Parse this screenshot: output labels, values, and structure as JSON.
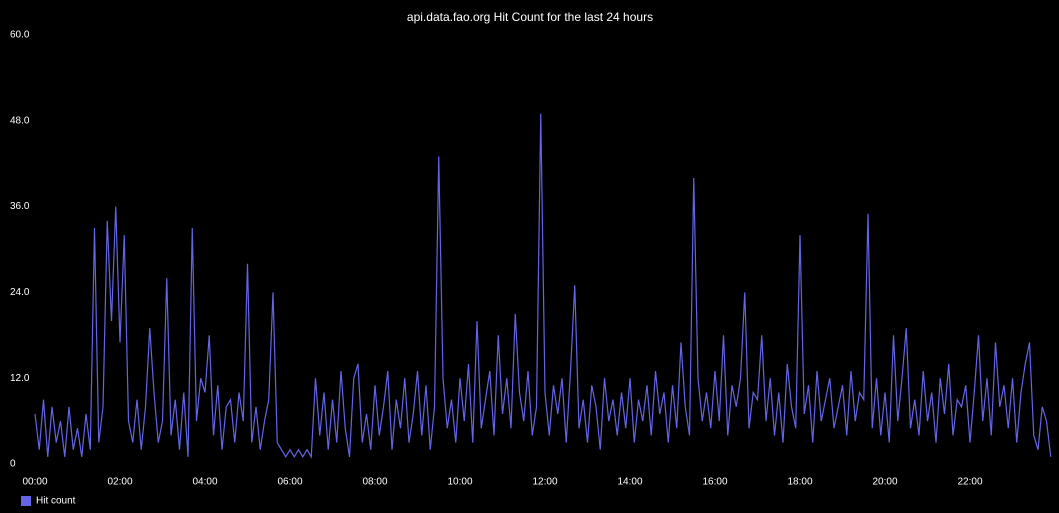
{
  "chart_data": {
    "type": "line",
    "title": "api.data.fao.org Hit Count for the last 24 hours",
    "x": [
      0,
      0.1,
      0.2,
      0.3,
      0.4,
      0.5,
      0.6,
      0.7,
      0.8,
      0.9,
      1,
      1.1,
      1.2,
      1.3,
      1.4,
      1.5,
      1.6,
      1.7,
      1.8,
      1.9,
      2,
      2.1,
      2.2,
      2.3,
      2.4,
      2.5,
      2.6,
      2.7,
      2.8,
      2.9,
      3,
      3.1,
      3.2,
      3.3,
      3.4,
      3.5,
      3.6,
      3.7,
      3.8,
      3.9,
      4,
      4.1,
      4.2,
      4.3,
      4.4,
      4.5,
      4.6,
      4.7,
      4.8,
      4.9,
      5,
      5.1,
      5.2,
      5.3,
      5.4,
      5.5,
      5.6,
      5.7,
      5.8,
      5.9,
      6,
      6.1,
      6.2,
      6.3,
      6.4,
      6.5,
      6.6,
      6.7,
      6.8,
      6.9,
      7,
      7.1,
      7.2,
      7.3,
      7.4,
      7.5,
      7.6,
      7.7,
      7.8,
      7.9,
      8,
      8.1,
      8.2,
      8.3,
      8.4,
      8.5,
      8.6,
      8.7,
      8.8,
      8.9,
      9,
      9.1,
      9.2,
      9.3,
      9.4,
      9.5,
      9.6,
      9.7,
      9.8,
      9.9,
      10,
      10.1,
      10.2,
      10.3,
      10.4,
      10.5,
      10.6,
      10.7,
      10.8,
      10.9,
      11,
      11.1,
      11.2,
      11.3,
      11.4,
      11.5,
      11.6,
      11.7,
      11.8,
      11.9,
      12,
      12.1,
      12.2,
      12.3,
      12.4,
      12.5,
      12.6,
      12.7,
      12.8,
      12.9,
      13,
      13.1,
      13.2,
      13.3,
      13.4,
      13.5,
      13.6,
      13.7,
      13.8,
      13.9,
      14,
      14.1,
      14.2,
      14.3,
      14.4,
      14.5,
      14.6,
      14.7,
      14.8,
      14.9,
      15,
      15.1,
      15.2,
      15.3,
      15.4,
      15.5,
      15.6,
      15.7,
      15.8,
      15.9,
      16,
      16.1,
      16.2,
      16.3,
      16.4,
      16.5,
      16.6,
      16.7,
      16.8,
      16.9,
      17,
      17.1,
      17.2,
      17.3,
      17.4,
      17.5,
      17.6,
      17.7,
      17.8,
      17.9,
      18,
      18.1,
      18.2,
      18.3,
      18.4,
      18.5,
      18.6,
      18.7,
      18.8,
      18.9,
      19,
      19.1,
      19.2,
      19.3,
      19.4,
      19.5,
      19.6,
      19.7,
      19.8,
      19.9,
      20,
      20.1,
      20.2,
      20.3,
      20.4,
      20.5,
      20.6,
      20.7,
      20.8,
      20.9,
      21,
      21.1,
      21.2,
      21.3,
      21.4,
      21.5,
      21.6,
      21.7,
      21.8,
      21.9,
      22,
      22.1,
      22.2,
      22.3,
      22.4,
      22.5,
      22.6,
      22.7,
      22.8,
      22.9,
      23,
      23.1,
      23.2,
      23.3,
      23.4,
      23.5,
      23.6,
      23.7,
      23.8,
      23.9
    ],
    "series": [
      {
        "name": "Hit count",
        "color": "#6464e6",
        "values": [
          7,
          2,
          9,
          1,
          8,
          3,
          6,
          1,
          8,
          2,
          5,
          1,
          7,
          2,
          33,
          3,
          8,
          34,
          20,
          36,
          17,
          32,
          6,
          3,
          9,
          2,
          8,
          19,
          10,
          3,
          6,
          26,
          4,
          9,
          2,
          10,
          1,
          33,
          6,
          12,
          10,
          18,
          4,
          11,
          2,
          8,
          9,
          3,
          10,
          6,
          28,
          3,
          8,
          2,
          6,
          9,
          24,
          3,
          2,
          1,
          2,
          1,
          2,
          1,
          2,
          1,
          12,
          4,
          10,
          2,
          9,
          3,
          13,
          5,
          1,
          12,
          14,
          3,
          7,
          2,
          11,
          4,
          8,
          13,
          2,
          9,
          5,
          12,
          3,
          7,
          13,
          4,
          11,
          2,
          8,
          43,
          12,
          5,
          9,
          3,
          12,
          6,
          14,
          3,
          20,
          5,
          9,
          13,
          4,
          18,
          7,
          12,
          5,
          21,
          10,
          6,
          13,
          4,
          8,
          49,
          10,
          4,
          11,
          7,
          12,
          3,
          13,
          25,
          5,
          9,
          3,
          11,
          8,
          2,
          12,
          6,
          9,
          4,
          10,
          5,
          12,
          3,
          9,
          6,
          11,
          4,
          13,
          7,
          10,
          3,
          11,
          5,
          17,
          8,
          4,
          40,
          12,
          6,
          10,
          5,
          13,
          6,
          18,
          4,
          11,
          8,
          12,
          24,
          5,
          10,
          9,
          18,
          6,
          12,
          4,
          10,
          3,
          14,
          8,
          5,
          32,
          7,
          11,
          3,
          13,
          6,
          9,
          12,
          5,
          8,
          11,
          4,
          13,
          6,
          10,
          9,
          35,
          5,
          12,
          4,
          10,
          3,
          18,
          6,
          12,
          19,
          5,
          9,
          4,
          13,
          6,
          10,
          3,
          12,
          7,
          14,
          4,
          9,
          8,
          11,
          3,
          10,
          18,
          6,
          12,
          4,
          17,
          8,
          11,
          5,
          12,
          3,
          10,
          14,
          17,
          4,
          2,
          8,
          6,
          1
        ]
      }
    ],
    "xlim": [
      0,
      24
    ],
    "xticks": [
      {
        "value": 0,
        "label": "00:00"
      },
      {
        "value": 2,
        "label": "02:00"
      },
      {
        "value": 4,
        "label": "04:00"
      },
      {
        "value": 6,
        "label": "06:00"
      },
      {
        "value": 8,
        "label": "08:00"
      },
      {
        "value": 10,
        "label": "10:00"
      },
      {
        "value": 12,
        "label": "12:00"
      },
      {
        "value": 14,
        "label": "14:00"
      },
      {
        "value": 16,
        "label": "16:00"
      },
      {
        "value": 18,
        "label": "18:00"
      },
      {
        "value": 20,
        "label": "20:00"
      },
      {
        "value": 22,
        "label": "22:00"
      }
    ],
    "ylim": [
      0,
      60
    ],
    "yticks": [
      0,
      {
        "value": 12,
        "label": "12.0"
      },
      {
        "value": 24,
        "label": "24.0"
      },
      {
        "value": 36,
        "label": "36.0"
      },
      {
        "value": 48,
        "label": "48.0"
      },
      {
        "value": 60,
        "label": "60.0"
      }
    ],
    "legend": "bottom-left"
  }
}
